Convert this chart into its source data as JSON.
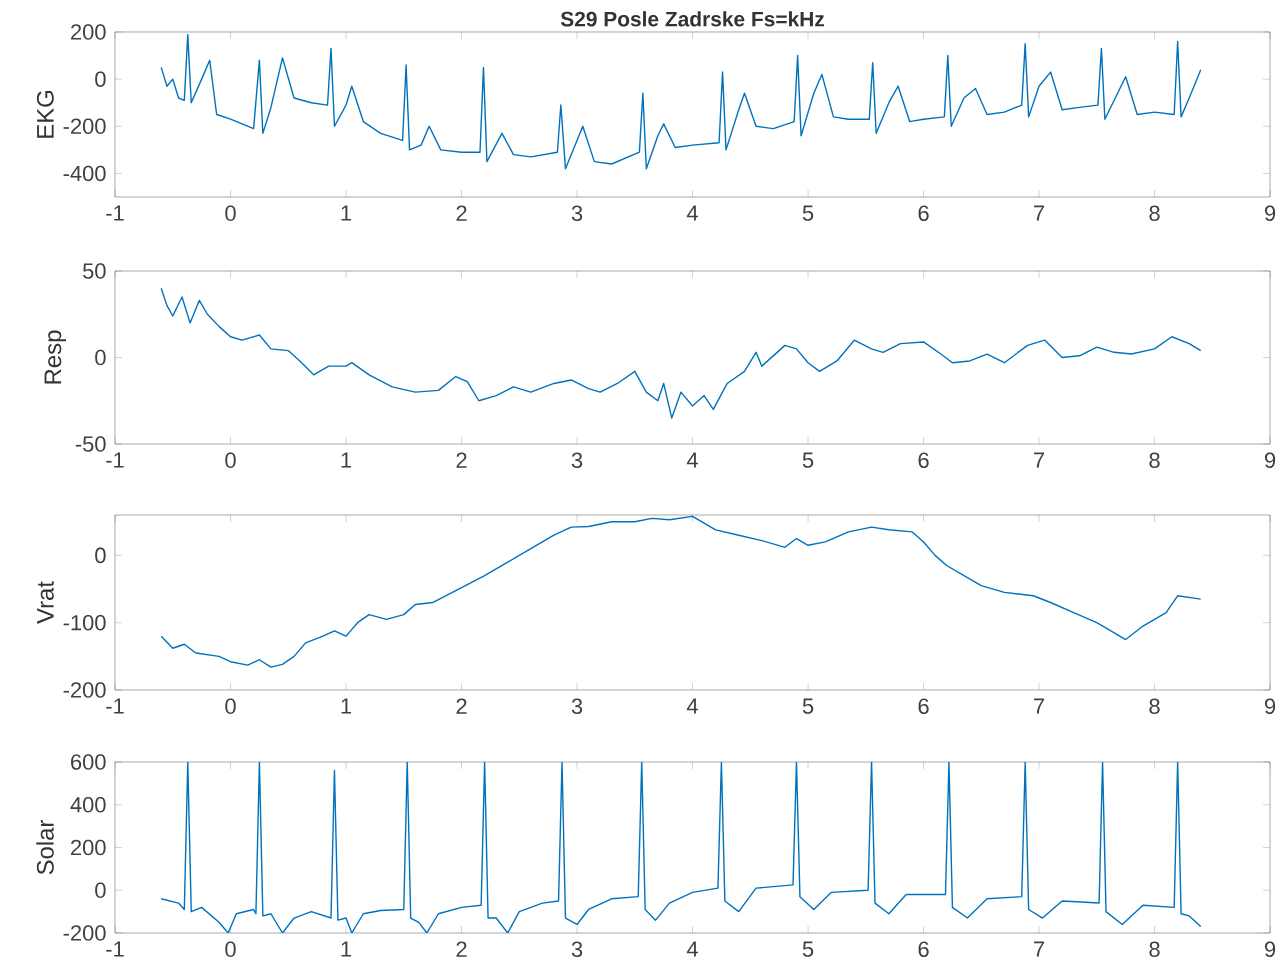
{
  "chart_data": [
    {
      "type": "line",
      "title": "S29 Posle Zadrske Fs=kHz",
      "ylabel": "EKG",
      "xlim": [
        -1,
        9
      ],
      "xticks": [
        -1,
        0,
        1,
        2,
        3,
        4,
        5,
        6,
        7,
        8,
        9
      ],
      "ylim": [
        -500,
        200
      ],
      "yticks": [
        -400,
        -200,
        0,
        200
      ],
      "color": "#0072bd",
      "x": [
        -0.6,
        -0.55,
        -0.5,
        -0.45,
        -0.4,
        -0.37,
        -0.34,
        -0.25,
        -0.18,
        -0.12,
        0,
        0.1,
        0.2,
        0.25,
        0.28,
        0.35,
        0.45,
        0.55,
        0.7,
        0.84,
        0.87,
        0.9,
        1.0,
        1.05,
        1.15,
        1.3,
        1.49,
        1.52,
        1.55,
        1.65,
        1.72,
        1.82,
        2.0,
        2.16,
        2.19,
        2.22,
        2.35,
        2.45,
        2.6,
        2.83,
        2.86,
        2.9,
        3.0,
        3.05,
        3.15,
        3.3,
        3.54,
        3.57,
        3.6,
        3.7,
        3.75,
        3.85,
        4.0,
        4.23,
        4.26,
        4.29,
        4.4,
        4.45,
        4.55,
        4.7,
        4.88,
        4.91,
        4.94,
        5.05,
        5.12,
        5.22,
        5.35,
        5.53,
        5.56,
        5.59,
        5.7,
        5.78,
        5.88,
        6.0,
        6.18,
        6.21,
        6.24,
        6.35,
        6.45,
        6.55,
        6.7,
        6.85,
        6.88,
        6.91,
        7.0,
        7.1,
        7.2,
        7.35,
        7.51,
        7.54,
        7.57,
        7.68,
        7.75,
        7.85,
        8.0,
        8.17,
        8.2,
        8.23,
        8.3,
        8.4
      ],
      "values": [
        50,
        -30,
        0,
        -80,
        -90,
        190,
        -100,
        0,
        80,
        -150,
        -170,
        -190,
        -210,
        80,
        -230,
        -120,
        90,
        -80,
        -100,
        -110,
        130,
        -200,
        -110,
        -30,
        -180,
        -230,
        -260,
        60,
        -300,
        -280,
        -200,
        -300,
        -310,
        -310,
        50,
        -350,
        -230,
        -320,
        -330,
        -310,
        -110,
        -380,
        -260,
        -200,
        -350,
        -360,
        -310,
        -60,
        -380,
        -240,
        -190,
        -290,
        -280,
        -270,
        30,
        -300,
        -130,
        -60,
        -200,
        -210,
        -180,
        100,
        -240,
        -60,
        20,
        -160,
        -170,
        -170,
        70,
        -230,
        -100,
        -30,
        -180,
        -170,
        -160,
        100,
        -200,
        -80,
        -40,
        -150,
        -140,
        -110,
        150,
        -160,
        -30,
        30,
        -130,
        -120,
        -110,
        130,
        -170,
        -60,
        10,
        -150,
        -140,
        -150,
        160,
        -160,
        -80,
        40
      ]
    },
    {
      "type": "line",
      "ylabel": "Resp",
      "xlim": [
        -1,
        9
      ],
      "xticks": [
        -1,
        0,
        1,
        2,
        3,
        4,
        5,
        6,
        7,
        8,
        9
      ],
      "ylim": [
        -50,
        50
      ],
      "yticks": [
        -50,
        0,
        50
      ],
      "color": "#0072bd",
      "x": [
        -0.6,
        -0.55,
        -0.5,
        -0.42,
        -0.35,
        -0.27,
        -0.2,
        -0.1,
        0,
        0.1,
        0.25,
        0.35,
        0.5,
        0.6,
        0.72,
        0.85,
        1.0,
        1.05,
        1.2,
        1.4,
        1.6,
        1.8,
        1.95,
        2.05,
        2.15,
        2.3,
        2.45,
        2.6,
        2.8,
        2.95,
        3.1,
        3.2,
        3.35,
        3.5,
        3.6,
        3.7,
        3.75,
        3.82,
        3.9,
        4.0,
        4.1,
        4.18,
        4.3,
        4.45,
        4.55,
        4.6,
        4.8,
        4.9,
        5.0,
        5.1,
        5.25,
        5.4,
        5.55,
        5.65,
        5.8,
        6.0,
        6.15,
        6.25,
        6.4,
        6.55,
        6.7,
        6.9,
        7.05,
        7.2,
        7.35,
        7.5,
        7.65,
        7.8,
        8.0,
        8.15,
        8.3,
        8.4
      ],
      "values": [
        40,
        30,
        24,
        35,
        20,
        33,
        25,
        18,
        12,
        10,
        13,
        5,
        4,
        -2,
        -10,
        -5,
        -5,
        -3,
        -10,
        -17,
        -20,
        -19,
        -11,
        -14,
        -25,
        -22,
        -17,
        -20,
        -15,
        -13,
        -18,
        -20,
        -15,
        -8,
        -20,
        -25,
        -15,
        -35,
        -20,
        -28,
        -22,
        -30,
        -15,
        -8,
        3,
        -5,
        7,
        5,
        -3,
        -8,
        -2,
        10,
        5,
        3,
        8,
        9,
        2,
        -3,
        -2,
        2,
        -3,
        7,
        10,
        0,
        1,
        6,
        3,
        2,
        5,
        12,
        8,
        4
      ]
    },
    {
      "type": "line",
      "ylabel": "Vrat",
      "xlim": [
        -1,
        9
      ],
      "xticks": [
        -1,
        0,
        1,
        2,
        3,
        4,
        5,
        6,
        7,
        8,
        9
      ],
      "ylim": [
        -200,
        60
      ],
      "yticks": [
        -200,
        -100,
        0
      ],
      "color": "#0072bd",
      "x": [
        -0.6,
        -0.5,
        -0.4,
        -0.3,
        -0.1,
        0,
        0.15,
        0.25,
        0.35,
        0.45,
        0.55,
        0.65,
        0.8,
        0.9,
        1.0,
        1.1,
        1.2,
        1.35,
        1.5,
        1.6,
        1.75,
        2.0,
        2.2,
        2.4,
        2.6,
        2.8,
        2.95,
        3.1,
        3.3,
        3.5,
        3.65,
        3.8,
        4.0,
        4.2,
        4.4,
        4.6,
        4.8,
        4.9,
        5.0,
        5.15,
        5.35,
        5.55,
        5.7,
        5.9,
        6.0,
        6.1,
        6.2,
        6.35,
        6.5,
        6.7,
        6.95,
        7.1,
        7.3,
        7.5,
        7.6,
        7.75,
        7.9,
        8.1,
        8.2,
        8.4
      ],
      "values": [
        -120,
        -138,
        -132,
        -145,
        -150,
        -158,
        -163,
        -155,
        -166,
        -162,
        -150,
        -130,
        -120,
        -112,
        -120,
        -100,
        -88,
        -95,
        -88,
        -73,
        -70,
        -48,
        -30,
        -10,
        10,
        30,
        42,
        43,
        50,
        50,
        55,
        53,
        58,
        38,
        30,
        22,
        12,
        25,
        15,
        20,
        35,
        42,
        38,
        35,
        20,
        0,
        -15,
        -30,
        -45,
        -55,
        -60,
        -70,
        -85,
        -100,
        -110,
        -125,
        -105,
        -85,
        -60,
        -65
      ]
    },
    {
      "type": "line",
      "ylabel": "Solar",
      "xlim": [
        -1,
        9
      ],
      "xticks": [
        -1,
        0,
        1,
        2,
        3,
        4,
        5,
        6,
        7,
        8,
        9
      ],
      "ylim": [
        -200,
        600
      ],
      "yticks": [
        -200,
        0,
        200,
        400,
        600
      ],
      "color": "#0072bd",
      "x": [
        -0.6,
        -0.45,
        -0.4,
        -0.37,
        -0.34,
        -0.25,
        -0.1,
        -0.02,
        0.05,
        0.2,
        0.22,
        0.25,
        0.28,
        0.35,
        0.45,
        0.55,
        0.7,
        0.87,
        0.9,
        0.93,
        1.0,
        1.05,
        1.15,
        1.3,
        1.5,
        1.53,
        1.56,
        1.63,
        1.7,
        1.8,
        2.0,
        2.17,
        2.2,
        2.23,
        2.3,
        2.4,
        2.5,
        2.7,
        2.84,
        2.87,
        2.9,
        3.0,
        3.1,
        3.3,
        3.53,
        3.56,
        3.59,
        3.68,
        3.8,
        4.0,
        4.22,
        4.25,
        4.28,
        4.4,
        4.55,
        4.87,
        4.9,
        4.93,
        5.05,
        5.2,
        5.52,
        5.55,
        5.58,
        5.7,
        5.85,
        6.19,
        6.22,
        6.25,
        6.38,
        6.55,
        6.85,
        6.88,
        6.91,
        7.03,
        7.2,
        7.52,
        7.55,
        7.58,
        7.72,
        7.9,
        8.17,
        8.2,
        8.23,
        8.3,
        8.4
      ],
      "values": [
        -40,
        -60,
        -90,
        600,
        -100,
        -80,
        -150,
        -200,
        -110,
        -90,
        -110,
        600,
        -120,
        -110,
        -200,
        -130,
        -100,
        -130,
        560,
        -140,
        -130,
        -200,
        -110,
        -95,
        -90,
        600,
        -130,
        -150,
        -200,
        -110,
        -80,
        -70,
        600,
        -130,
        -130,
        -200,
        -100,
        -60,
        -50,
        600,
        -130,
        -160,
        -90,
        -40,
        -30,
        600,
        -90,
        -140,
        -60,
        -10,
        10,
        600,
        -50,
        -100,
        10,
        25,
        600,
        -30,
        -90,
        -10,
        0,
        600,
        -60,
        -110,
        -20,
        -20,
        600,
        -80,
        -130,
        -40,
        -30,
        600,
        -90,
        -130,
        -50,
        -60,
        600,
        -100,
        -160,
        -70,
        -80,
        600,
        -110,
        -120,
        -170
      ]
    }
  ]
}
